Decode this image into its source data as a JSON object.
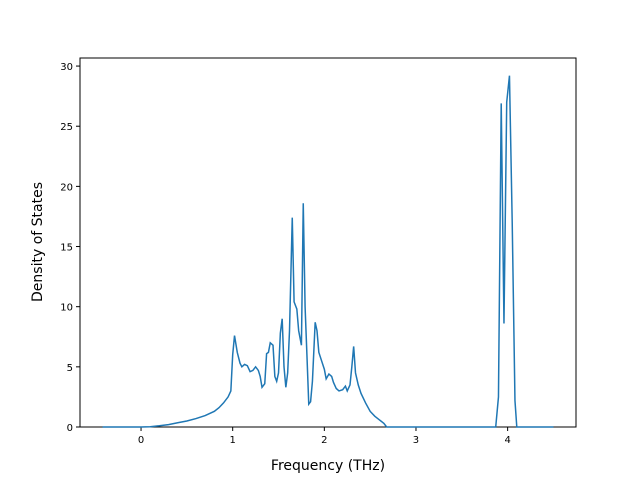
{
  "chart_data": {
    "type": "line",
    "xlabel": "Frequency (THz)",
    "ylabel": "Density of States",
    "x": [
      -0.42,
      0,
      0.1,
      0.2,
      0.3,
      0.4,
      0.5,
      0.6,
      0.7,
      0.8,
      0.85,
      0.9,
      0.95,
      0.98,
      1.0,
      1.02,
      1.05,
      1.08,
      1.1,
      1.13,
      1.16,
      1.19,
      1.22,
      1.25,
      1.28,
      1.3,
      1.32,
      1.35,
      1.37,
      1.39,
      1.41,
      1.44,
      1.46,
      1.48,
      1.5,
      1.52,
      1.54,
      1.56,
      1.58,
      1.6,
      1.62,
      1.65,
      1.67,
      1.7,
      1.72,
      1.75,
      1.77,
      1.79,
      1.81,
      1.83,
      1.85,
      1.87,
      1.9,
      1.92,
      1.94,
      1.97,
      2.0,
      2.02,
      2.05,
      2.08,
      2.1,
      2.13,
      2.16,
      2.2,
      2.23,
      2.25,
      2.28,
      2.3,
      2.32,
      2.34,
      2.37,
      2.4,
      2.45,
      2.5,
      2.55,
      2.6,
      2.65,
      2.68,
      3.5,
      3.87,
      3.9,
      3.93,
      3.96,
      3.99,
      4.02,
      4.05,
      4.08,
      4.1,
      4.5
    ],
    "series": [
      {
        "color": "#1f77b4",
        "values": [
          0,
          0,
          0.02,
          0.1,
          0.2,
          0.35,
          0.5,
          0.7,
          0.95,
          1.3,
          1.6,
          2.0,
          2.5,
          3.0,
          6.0,
          7.6,
          6.2,
          5.3,
          5.0,
          5.2,
          5.1,
          4.6,
          4.7,
          5.0,
          4.7,
          4.2,
          3.3,
          3.6,
          6.1,
          6.2,
          7.0,
          6.8,
          4.2,
          3.8,
          4.5,
          7.8,
          9.0,
          5.0,
          3.3,
          4.5,
          8.0,
          17.4,
          10.4,
          9.8,
          8.0,
          6.8,
          18.6,
          10,
          6.0,
          1.9,
          2.1,
          3.8,
          8.7,
          8.0,
          6.2,
          5.5,
          4.8,
          4.0,
          4.4,
          4.2,
          3.7,
          3.2,
          3.0,
          3.1,
          3.4,
          3.0,
          3.5,
          5.0,
          6.7,
          4.5,
          3.5,
          2.8,
          2.0,
          1.3,
          0.9,
          0.6,
          0.3,
          0,
          0,
          0,
          2.5,
          26.9,
          8.6,
          27.0,
          29.2,
          17,
          2.2,
          0,
          0
        ]
      }
    ],
    "xlim": [
      -0.666,
      4.746
    ],
    "ylim": [
      0,
      30.67
    ],
    "xticks": [
      0,
      1,
      2,
      3,
      4
    ],
    "yticks": [
      0,
      5,
      10,
      15,
      20,
      25,
      30
    ]
  }
}
